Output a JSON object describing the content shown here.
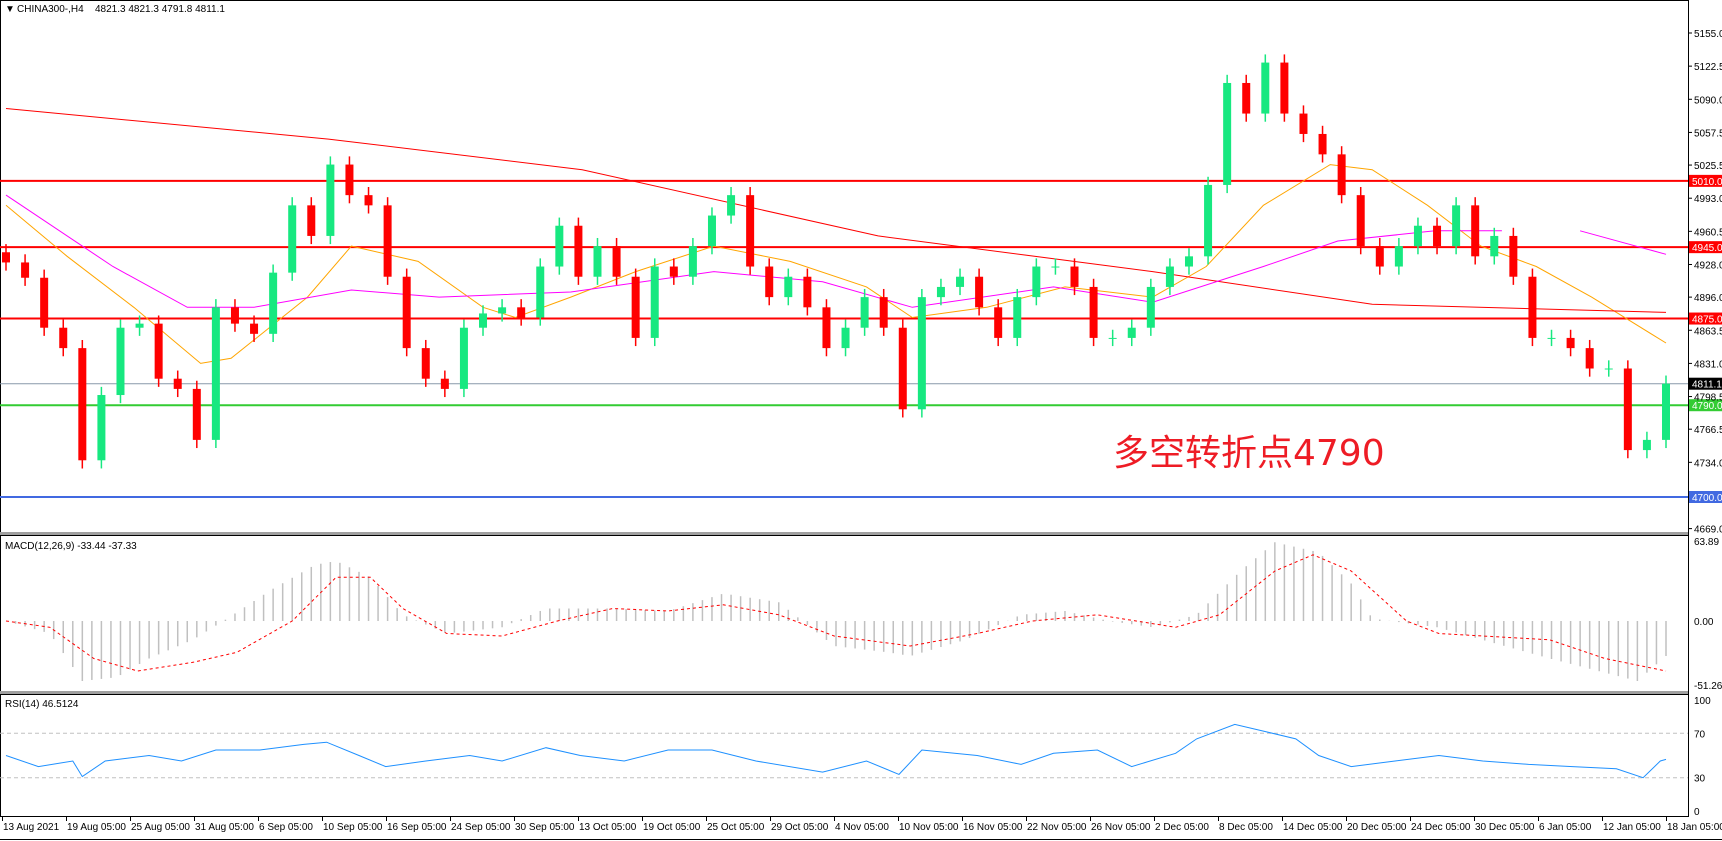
{
  "header": {
    "symbol_label": "CHINA300-,H4",
    "ohlc": "4821.3 4821.3 4791.8 4811.1"
  },
  "annotation": "多空转折点4790",
  "colors": {
    "bull": "#17e880",
    "bear": "#ff0000",
    "ma_fast": "#ffa500",
    "ma_mid": "#ff00ff",
    "ma_slow": "#ff0000",
    "macd_hist": "#c0c0c0",
    "macd_signal": "#ff0000",
    "rsi": "#1e90ff",
    "support_line": "#33cc33",
    "bottom_line": "#4169e1",
    "resistance_line": "#ff0000",
    "price_line": "#8899aa"
  },
  "chart_data": [
    {
      "type": "candlestick",
      "title": "CHINA300-,H4",
      "ylim": [
        4669,
        5170
      ],
      "y_ticks": [
        "5155.0",
        "5122.5",
        "5090.0",
        "5057.5",
        "5025.5",
        "4993.0",
        "4960.5",
        "4928.0",
        "4896.0",
        "4863.5",
        "4831.0",
        "4798.5",
        "4766.5",
        "4734.0",
        "4669.0"
      ],
      "x_ticks": [
        "13 Aug 2021",
        "19 Aug 05:00",
        "25 Aug 05:00",
        "31 Aug 05:00",
        "6 Sep 05:00",
        "10 Sep 05:00",
        "16 Sep 05:00",
        "24 Sep 05:00",
        "30 Sep 05:00",
        "13 Oct 05:00",
        "19 Oct 05:00",
        "25 Oct 05:00",
        "29 Oct 05:00",
        "4 Nov 05:00",
        "10 Nov 05:00",
        "16 Nov 05:00",
        "22 Nov 05:00",
        "26 Nov 05:00",
        "2 Dec 05:00",
        "8 Dec 05:00",
        "14 Dec 05:00",
        "20 Dec 05:00",
        "24 Dec 05:00",
        "30 Dec 05:00",
        "6 Jan 05:00",
        "12 Jan 05:00",
        "18 Jan 05:00"
      ],
      "first_open": 4940,
      "closes": [
        4930,
        4915,
        4866,
        4846,
        4736,
        4800,
        4866,
        4870,
        4816,
        4806,
        4756,
        4886,
        4870,
        4860,
        4920,
        4986,
        4956,
        5026,
        4996,
        4986,
        4916,
        4846,
        4816,
        4806,
        4866,
        4880,
        4886,
        4876,
        4926,
        4966,
        4916,
        4946,
        4916,
        4856,
        4926,
        4916,
        4946,
        4976,
        4996,
        4926,
        4896,
        4916,
        4886,
        4846,
        4866,
        4896,
        4866,
        4786,
        4896,
        4906,
        4916,
        4886,
        4856,
        4896,
        4926,
        4926,
        4906,
        4856,
        4856,
        4866,
        4906,
        4926,
        4936,
        5006,
        5106,
        5076,
        5126,
        5076,
        5056,
        5036,
        4996,
        4946,
        4926,
        4946,
        4966,
        4946,
        4986,
        4936,
        4956,
        4916,
        4856,
        4856,
        4846,
        4826,
        4826,
        4746,
        4756,
        4811.1
      ],
      "moving_averages": [
        {
          "color_key": "ma_fast",
          "points": [
            [
              0,
              4986
            ],
            [
              3.2,
              4936
            ],
            [
              6.7,
              4886
            ],
            [
              10.2,
              4831
            ],
            [
              11.8,
              4836
            ],
            [
              15.8,
              4896
            ],
            [
              18.1,
              4946
            ],
            [
              21.6,
              4931
            ],
            [
              25,
              4886
            ],
            [
              26.7,
              4876
            ],
            [
              29.6,
              4896
            ],
            [
              33,
              4921
            ],
            [
              37.1,
              4946
            ],
            [
              41.1,
              4931
            ],
            [
              45.1,
              4906
            ],
            [
              47.5,
              4876
            ],
            [
              51.4,
              4886
            ],
            [
              55.5,
              4906
            ],
            [
              60.1,
              4896
            ],
            [
              62.9,
              4926
            ],
            [
              65.9,
              4986
            ],
            [
              69.4,
              5026
            ],
            [
              71.6,
              5021
            ],
            [
              74.5,
              4986
            ],
            [
              77.3,
              4946
            ],
            [
              80.2,
              4926
            ],
            [
              83.1,
              4896
            ],
            [
              87,
              4851
            ]
          ]
        },
        {
          "color_key": "ma_slow",
          "points": [
            [
              0,
              5081
            ],
            [
              16.9,
              5051
            ],
            [
              30.2,
              5021
            ],
            [
              45.7,
              4956
            ],
            [
              60.1,
              4921
            ],
            [
              71.6,
              4889
            ],
            [
              87,
              4881
            ]
          ]
        },
        {
          "color_key": "ma_mid",
          "points": [
            [
              0,
              4996
            ],
            [
              5.6,
              4926
            ],
            [
              9.5,
              4886
            ],
            [
              13,
              4886
            ],
            [
              18.1,
              4903
            ],
            [
              22.7,
              4896
            ],
            [
              29.6,
              4901
            ],
            [
              37.1,
              4921
            ],
            [
              42.8,
              4911
            ],
            [
              47.5,
              4886
            ],
            [
              54.9,
              4906
            ],
            [
              60.1,
              4891
            ],
            [
              65.9,
              4926
            ],
            [
              69.8,
              4951
            ],
            [
              74.9,
              4961
            ],
            [
              78.4,
              4961
            ],
            null,
            [
              82.5,
              4961
            ],
            [
              87,
              4938
            ]
          ]
        }
      ],
      "horizontal_lines": [
        {
          "price": 5010.0,
          "label": "5010.0",
          "color_key": "resistance_line"
        },
        {
          "price": 4945.0,
          "label": "4945.0",
          "color_key": "resistance_line"
        },
        {
          "price": 4875.0,
          "label": "4875.0",
          "color_key": "resistance_line"
        },
        {
          "price": 4811.1,
          "label": "4811.1",
          "color_key": "price_line",
          "label_bg": "#000000"
        },
        {
          "price": 4790.0,
          "label": "4790.0",
          "color_key": "support_line"
        },
        {
          "price": 4700.0,
          "label": "4700.0",
          "color_key": "bottom_line"
        }
      ]
    },
    {
      "type": "bar",
      "title": "MACD(12,26,9) -33.44 -37.33",
      "ylim": [
        -51.26,
        63.89
      ],
      "y_ticks": [
        "63.89",
        "0.00",
        "-51.26"
      ],
      "histogram": [
        [
          0,
          0
        ],
        [
          2.3,
          -10
        ],
        [
          4,
          -48
        ],
        [
          5.8,
          -45
        ],
        [
          7.5,
          -30
        ],
        [
          9.8,
          -15
        ],
        [
          11.6,
          2
        ],
        [
          13.9,
          25
        ],
        [
          16.2,
          45
        ],
        [
          17.3,
          48
        ],
        [
          19.1,
          35
        ],
        [
          20.8,
          5
        ],
        [
          23.1,
          -10
        ],
        [
          26,
          -5
        ],
        [
          28.3,
          10
        ],
        [
          31.8,
          10
        ],
        [
          34.7,
          8
        ],
        [
          37.6,
          22
        ],
        [
          40.5,
          15
        ],
        [
          43.4,
          -20
        ],
        [
          46.2,
          -25
        ],
        [
          47.4,
          -28
        ],
        [
          50.3,
          -15
        ],
        [
          53.2,
          5
        ],
        [
          55.5,
          8
        ],
        [
          57.8,
          0
        ],
        [
          60.1,
          -5
        ],
        [
          62.4,
          5
        ],
        [
          64.7,
          40
        ],
        [
          66.5,
          63
        ],
        [
          68.8,
          55
        ],
        [
          70.5,
          30
        ],
        [
          71.6,
          2
        ],
        [
          75,
          -5
        ],
        [
          80.9,
          -30
        ],
        [
          85.5,
          -48
        ],
        [
          87,
          -28
        ]
      ],
      "signal": [
        [
          0,
          0
        ],
        [
          2.3,
          -5
        ],
        [
          4.6,
          -30
        ],
        [
          6.9,
          -40
        ],
        [
          9.8,
          -33
        ],
        [
          12.1,
          -25
        ],
        [
          15,
          0
        ],
        [
          17.3,
          35
        ],
        [
          19.1,
          35
        ],
        [
          20.8,
          10
        ],
        [
          23.1,
          -10
        ],
        [
          26,
          -12
        ],
        [
          28.9,
          0
        ],
        [
          31.8,
          10
        ],
        [
          34.7,
          8
        ],
        [
          37.6,
          13
        ],
        [
          40.5,
          5
        ],
        [
          43.4,
          -12
        ],
        [
          47.4,
          -20
        ],
        [
          50.9,
          -10
        ],
        [
          53.8,
          0
        ],
        [
          57.2,
          5
        ],
        [
          61.3,
          -5
        ],
        [
          63.6,
          5
        ],
        [
          66.5,
          40
        ],
        [
          68.5,
          53
        ],
        [
          70.5,
          40
        ],
        [
          73.4,
          0
        ],
        [
          75.1,
          -10
        ],
        [
          80.9,
          -15
        ],
        [
          83.8,
          -30
        ],
        [
          87,
          -40
        ]
      ]
    },
    {
      "type": "line",
      "title": "RSI(14) 46.5124",
      "ylim": [
        0,
        100
      ],
      "y_ticks": [
        "100",
        "70",
        "30",
        "0"
      ],
      "levels": [
        70,
        30
      ],
      "values": [
        [
          0,
          50
        ],
        [
          1.7,
          40
        ],
        [
          3.5,
          45
        ],
        [
          4,
          31
        ],
        [
          5.2,
          45
        ],
        [
          7.5,
          50
        ],
        [
          9.2,
          45
        ],
        [
          11,
          55
        ],
        [
          13.3,
          55
        ],
        [
          15.6,
          60
        ],
        [
          16.8,
          62
        ],
        [
          18.5,
          50
        ],
        [
          19.9,
          40
        ],
        [
          22,
          45
        ],
        [
          24.3,
          50
        ],
        [
          26,
          45
        ],
        [
          28.3,
          57
        ],
        [
          30.1,
          50
        ],
        [
          32.4,
          45
        ],
        [
          34.7,
          55
        ],
        [
          37,
          55
        ],
        [
          39.3,
          45
        ],
        [
          42.8,
          35
        ],
        [
          45.1,
          45
        ],
        [
          46.8,
          33
        ],
        [
          48,
          55
        ],
        [
          50.9,
          50
        ],
        [
          53.2,
          42
        ],
        [
          54.9,
          52
        ],
        [
          57.2,
          55
        ],
        [
          59,
          40
        ],
        [
          61.3,
          52
        ],
        [
          62.4,
          65
        ],
        [
          64.4,
          78
        ],
        [
          65.9,
          72
        ],
        [
          67.6,
          65
        ],
        [
          68.8,
          50
        ],
        [
          70.5,
          40
        ],
        [
          72.8,
          45
        ],
        [
          75.1,
          50
        ],
        [
          77.4,
          45
        ],
        [
          79.8,
          42
        ],
        [
          82.1,
          40
        ],
        [
          84.4,
          38
        ],
        [
          85.8,
          30
        ],
        [
          86.7,
          45
        ],
        [
          87,
          46.5
        ]
      ]
    }
  ]
}
